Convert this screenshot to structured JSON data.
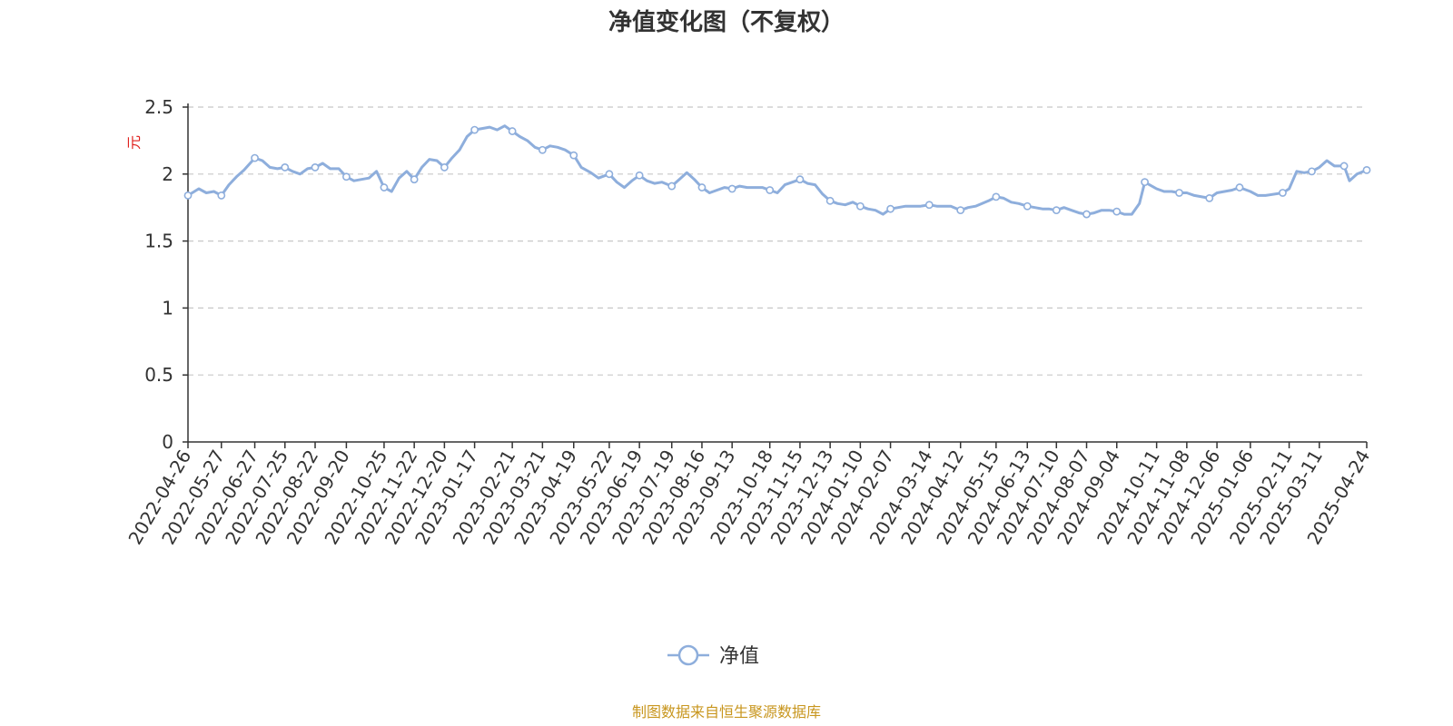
{
  "colors": {
    "series": "#8eaedc",
    "axis": "#333333",
    "grid": "#c8c8c8",
    "ylabel": "#e0221e",
    "source": "#c8961e"
  },
  "footer": {
    "source": "制图数据来自恒生聚源数据库"
  },
  "chart_data": {
    "type": "line",
    "title": "净值变化图（不复权）",
    "ylabel": "元",
    "xlabel": "",
    "ylim": [
      0,
      2.5
    ],
    "yticks": [
      "0",
      "0.5",
      "1",
      "1.5",
      "2",
      "2.5"
    ],
    "grid": "horizontal dashed",
    "legend": "bottom-center",
    "categories": [
      "2022-04-26",
      "2022-05-27",
      "2022-06-27",
      "2022-07-25",
      "2022-08-22",
      "2022-09-20",
      "2022-10-25",
      "2022-11-22",
      "2022-12-20",
      "2023-01-17",
      "2023-02-21",
      "2023-03-21",
      "2023-04-19",
      "2023-05-22",
      "2023-06-19",
      "2023-07-19",
      "2023-08-16",
      "2023-09-13",
      "2023-10-18",
      "2023-11-15",
      "2023-12-13",
      "2024-01-10",
      "2024-02-07",
      "2024-03-14",
      "2024-04-12",
      "2024-05-15",
      "2024-06-13",
      "2024-07-10",
      "2024-08-07",
      "2024-09-04",
      "2024-10-11",
      "2024-11-08",
      "2024-12-06",
      "2025-01-06",
      "2025-02-11",
      "2025-03-11",
      "2025-04-24"
    ],
    "series": [
      {
        "name": "净值",
        "points": [
          [
            "2022-04-26",
            1.84
          ],
          [
            "2022-05-06",
            1.89
          ],
          [
            "2022-05-13",
            1.86
          ],
          [
            "2022-05-20",
            1.87
          ],
          [
            "2022-05-27",
            1.84
          ],
          [
            "2022-06-03",
            1.92
          ],
          [
            "2022-06-10",
            1.98
          ],
          [
            "2022-06-17",
            2.03
          ],
          [
            "2022-06-27",
            2.12
          ],
          [
            "2022-07-04",
            2.1
          ],
          [
            "2022-07-11",
            2.05
          ],
          [
            "2022-07-18",
            2.04
          ],
          [
            "2022-07-25",
            2.05
          ],
          [
            "2022-08-01",
            2.02
          ],
          [
            "2022-08-08",
            2.0
          ],
          [
            "2022-08-15",
            2.04
          ],
          [
            "2022-08-22",
            2.05
          ],
          [
            "2022-08-29",
            2.08
          ],
          [
            "2022-09-05",
            2.04
          ],
          [
            "2022-09-13",
            2.04
          ],
          [
            "2022-09-20",
            1.98
          ],
          [
            "2022-09-27",
            1.95
          ],
          [
            "2022-10-11",
            1.97
          ],
          [
            "2022-10-18",
            2.02
          ],
          [
            "2022-10-25",
            1.9
          ],
          [
            "2022-11-01",
            1.87
          ],
          [
            "2022-11-08",
            1.97
          ],
          [
            "2022-11-15",
            2.02
          ],
          [
            "2022-11-22",
            1.96
          ],
          [
            "2022-11-29",
            2.05
          ],
          [
            "2022-12-06",
            2.11
          ],
          [
            "2022-12-13",
            2.1
          ],
          [
            "2022-12-20",
            2.05
          ],
          [
            "2022-12-27",
            2.12
          ],
          [
            "2023-01-03",
            2.18
          ],
          [
            "2023-01-10",
            2.28
          ],
          [
            "2023-01-17",
            2.33
          ],
          [
            "2023-01-31",
            2.35
          ],
          [
            "2023-02-07",
            2.33
          ],
          [
            "2023-02-14",
            2.36
          ],
          [
            "2023-02-21",
            2.32
          ],
          [
            "2023-02-28",
            2.28
          ],
          [
            "2023-03-07",
            2.25
          ],
          [
            "2023-03-14",
            2.2
          ],
          [
            "2023-03-21",
            2.18
          ],
          [
            "2023-03-28",
            2.21
          ],
          [
            "2023-04-04",
            2.2
          ],
          [
            "2023-04-11",
            2.18
          ],
          [
            "2023-04-19",
            2.14
          ],
          [
            "2023-04-26",
            2.05
          ],
          [
            "2023-05-05",
            2.01
          ],
          [
            "2023-05-12",
            1.97
          ],
          [
            "2023-05-22",
            2.0
          ],
          [
            "2023-05-29",
            1.94
          ],
          [
            "2023-06-05",
            1.9
          ],
          [
            "2023-06-12",
            1.95
          ],
          [
            "2023-06-19",
            1.99
          ],
          [
            "2023-06-26",
            1.95
          ],
          [
            "2023-07-03",
            1.93
          ],
          [
            "2023-07-10",
            1.94
          ],
          [
            "2023-07-19",
            1.91
          ],
          [
            "2023-07-26",
            1.96
          ],
          [
            "2023-08-02",
            2.01
          ],
          [
            "2023-08-09",
            1.96
          ],
          [
            "2023-08-16",
            1.9
          ],
          [
            "2023-08-23",
            1.86
          ],
          [
            "2023-08-30",
            1.88
          ],
          [
            "2023-09-06",
            1.9
          ],
          [
            "2023-09-13",
            1.89
          ],
          [
            "2023-09-20",
            1.91
          ],
          [
            "2023-09-27",
            1.9
          ],
          [
            "2023-10-11",
            1.9
          ],
          [
            "2023-10-18",
            1.88
          ],
          [
            "2023-10-25",
            1.86
          ],
          [
            "2023-11-01",
            1.92
          ],
          [
            "2023-11-08",
            1.94
          ],
          [
            "2023-11-15",
            1.96
          ],
          [
            "2023-11-22",
            1.93
          ],
          [
            "2023-11-29",
            1.92
          ],
          [
            "2023-12-06",
            1.85
          ],
          [
            "2023-12-13",
            1.8
          ],
          [
            "2023-12-20",
            1.78
          ],
          [
            "2023-12-27",
            1.77
          ],
          [
            "2024-01-03",
            1.79
          ],
          [
            "2024-01-10",
            1.76
          ],
          [
            "2024-01-17",
            1.74
          ],
          [
            "2024-01-24",
            1.73
          ],
          [
            "2024-01-31",
            1.7
          ],
          [
            "2024-02-07",
            1.74
          ],
          [
            "2024-02-21",
            1.76
          ],
          [
            "2024-02-28",
            1.76
          ],
          [
            "2024-03-06",
            1.76
          ],
          [
            "2024-03-14",
            1.77
          ],
          [
            "2024-03-21",
            1.76
          ],
          [
            "2024-03-28",
            1.76
          ],
          [
            "2024-04-03",
            1.76
          ],
          [
            "2024-04-12",
            1.73
          ],
          [
            "2024-04-19",
            1.75
          ],
          [
            "2024-04-26",
            1.76
          ],
          [
            "2024-05-08",
            1.8
          ],
          [
            "2024-05-15",
            1.83
          ],
          [
            "2024-05-22",
            1.82
          ],
          [
            "2024-05-29",
            1.79
          ],
          [
            "2024-06-05",
            1.78
          ],
          [
            "2024-06-13",
            1.76
          ],
          [
            "2024-06-20",
            1.75
          ],
          [
            "2024-06-27",
            1.74
          ],
          [
            "2024-07-03",
            1.74
          ],
          [
            "2024-07-10",
            1.73
          ],
          [
            "2024-07-17",
            1.75
          ],
          [
            "2024-07-24",
            1.73
          ],
          [
            "2024-07-31",
            1.71
          ],
          [
            "2024-08-07",
            1.7
          ],
          [
            "2024-08-14",
            1.71
          ],
          [
            "2024-08-21",
            1.73
          ],
          [
            "2024-08-28",
            1.73
          ],
          [
            "2024-09-04",
            1.72
          ],
          [
            "2024-09-11",
            1.7
          ],
          [
            "2024-09-18",
            1.7
          ],
          [
            "2024-09-25",
            1.78
          ],
          [
            "2024-09-30",
            1.94
          ],
          [
            "2024-10-11",
            1.89
          ],
          [
            "2024-10-18",
            1.87
          ],
          [
            "2024-10-25",
            1.87
          ],
          [
            "2024-11-01",
            1.86
          ],
          [
            "2024-11-08",
            1.86
          ],
          [
            "2024-11-15",
            1.84
          ],
          [
            "2024-11-22",
            1.83
          ],
          [
            "2024-11-29",
            1.82
          ],
          [
            "2024-12-06",
            1.86
          ],
          [
            "2024-12-13",
            1.87
          ],
          [
            "2024-12-20",
            1.88
          ],
          [
            "2024-12-27",
            1.9
          ],
          [
            "2025-01-06",
            1.87
          ],
          [
            "2025-01-13",
            1.84
          ],
          [
            "2025-01-20",
            1.84
          ],
          [
            "2025-02-05",
            1.86
          ],
          [
            "2025-02-11",
            1.89
          ],
          [
            "2025-02-18",
            2.02
          ],
          [
            "2025-02-25",
            2.01
          ],
          [
            "2025-03-04",
            2.02
          ],
          [
            "2025-03-11",
            2.05
          ],
          [
            "2025-03-18",
            2.1
          ],
          [
            "2025-03-25",
            2.06
          ],
          [
            "2025-04-03",
            2.06
          ],
          [
            "2025-04-08",
            1.95
          ],
          [
            "2025-04-15",
            2.0
          ],
          [
            "2025-04-24",
            2.03
          ]
        ]
      }
    ]
  }
}
